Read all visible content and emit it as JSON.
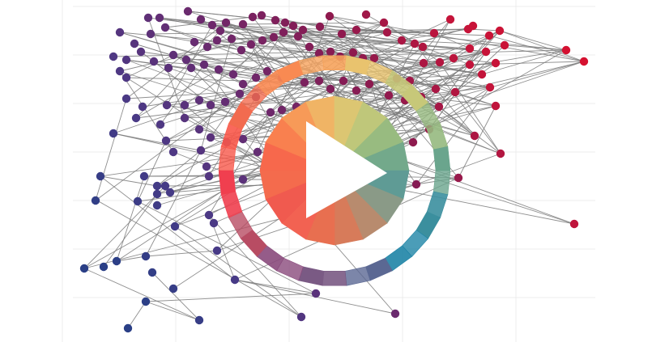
{
  "colors": {
    "background": "#ffffff",
    "grid": "#ececec",
    "edge": "#7a7a7a",
    "node_gradient": [
      "#2a3f86",
      "#4a3a86",
      "#6b2a6e",
      "#8a1a50",
      "#c4143a",
      "#d8102e"
    ],
    "ring_palette": [
      "#f8584a",
      "#f26b4f",
      "#f98a52",
      "#f6a35c",
      "#e9c36e",
      "#c7c879",
      "#96b97f",
      "#6aa58d",
      "#3b8f9e",
      "#1e84a6",
      "#5b6893",
      "#7a5a84",
      "#8a4a7c",
      "#b84c63",
      "#f03f4f"
    ]
  },
  "play_button": {
    "icon": "play-icon",
    "label": ""
  }
}
